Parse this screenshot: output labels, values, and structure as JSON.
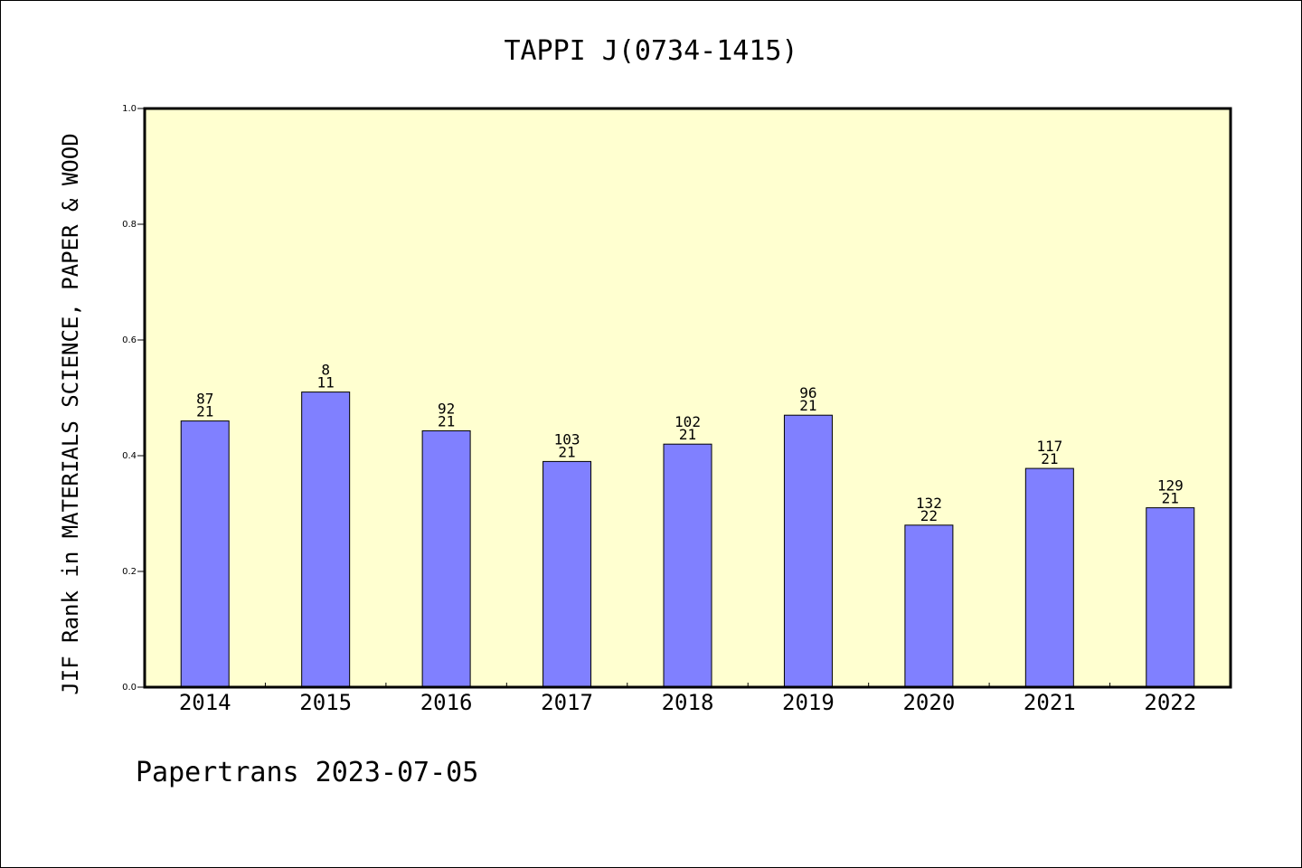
{
  "chart_data": {
    "type": "bar",
    "title": "TAPPI J(0734-1415)",
    "xlabel": "",
    "ylabel": "JIF Rank in MATERIALS SCIENCE, PAPER & WOOD",
    "ylim": [
      0.0,
      1.0
    ],
    "yticks": [
      "0.0",
      "0.2",
      "0.4",
      "0.6",
      "0.8",
      "1.0"
    ],
    "categories": [
      "2014",
      "2015",
      "2016",
      "2017",
      "2018",
      "2019",
      "2020",
      "2021",
      "2022"
    ],
    "values": [
      0.46,
      0.51,
      0.443,
      0.39,
      0.42,
      0.47,
      0.28,
      0.378,
      0.31
    ],
    "bar_labels": [
      {
        "top": "87",
        "bottom": "21"
      },
      {
        "top": "8",
        "bottom": "11"
      },
      {
        "top": "92",
        "bottom": "21"
      },
      {
        "top": "103",
        "bottom": "21"
      },
      {
        "top": "102",
        "bottom": "21"
      },
      {
        "top": "96",
        "bottom": "21"
      },
      {
        "top": "132",
        "bottom": "22"
      },
      {
        "top": "117",
        "bottom": "21"
      },
      {
        "top": "129",
        "bottom": "21"
      }
    ],
    "grid": false,
    "colors": {
      "plot_background": "#ffffd0",
      "bar_fill": "#8080ff",
      "bar_edge": "#000000",
      "axis": "#000000"
    }
  },
  "footer": {
    "text": "Papertrans 2023-07-05"
  }
}
